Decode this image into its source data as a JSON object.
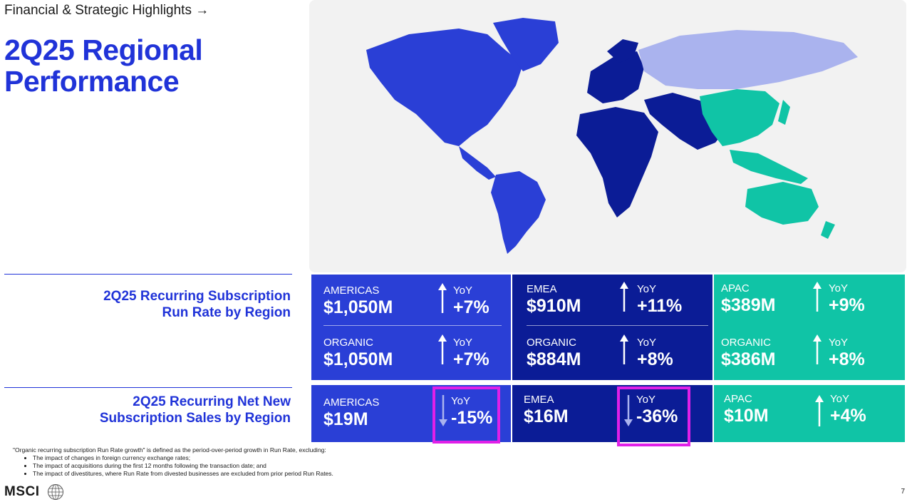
{
  "header": {
    "breadcrumb": "Financial & Strategic Highlights →",
    "title_line1": "2Q25 Regional",
    "title_line2": "Performance"
  },
  "colors": {
    "americas": "#2a3fd6",
    "emea": "#0b1c96",
    "apac": "#10c4a6",
    "russia": "#aab3ee",
    "highlight": "#e020e8"
  },
  "run_rate": {
    "label_line1": "2Q25 Recurring Subscription",
    "label_line2": "Run Rate by Region",
    "americas": {
      "label": "AMERICAS",
      "value": "$1,050M",
      "yoy": "YoY",
      "change": "+7%",
      "direction": "up",
      "organic_label": "ORGANIC",
      "organic_value": "$1,050M",
      "organic_yoy": "YoY",
      "organic_change": "+7%",
      "organic_direction": "up"
    },
    "emea": {
      "label": "EMEA",
      "value": "$910M",
      "yoy": "YoY",
      "change": "+11%",
      "direction": "up",
      "organic_label": "ORGANIC",
      "organic_value": "$884M",
      "organic_yoy": "YoY",
      "organic_change": "+8%",
      "organic_direction": "up"
    },
    "apac": {
      "label": "APAC",
      "value": "$389M",
      "yoy": "YoY",
      "change": "+9%",
      "direction": "up",
      "organic_label": "ORGANIC",
      "organic_value": "$386M",
      "organic_yoy": "YoY",
      "organic_change": "+8%",
      "organic_direction": "up"
    }
  },
  "net_new": {
    "label_line1": "2Q25 Recurring Net New",
    "label_line2": "Subscription Sales by Region",
    "americas": {
      "label": "AMERICAS",
      "value": "$19M",
      "yoy": "YoY",
      "change": "-15%",
      "direction": "down",
      "highlighted": true
    },
    "emea": {
      "label": "EMEA",
      "value": "$16M",
      "yoy": "YoY",
      "change": "-36%",
      "direction": "down",
      "highlighted": true
    },
    "apac": {
      "label": "APAC",
      "value": "$10M",
      "yoy": "YoY",
      "change": "+4%",
      "direction": "up",
      "highlighted": false
    }
  },
  "footnote": {
    "intro": "\"Organic recurring subscription Run Rate growth\" is defined as the period-over-period growth in Run Rate, excluding:",
    "items": [
      "The impact of changes in foreign currency exchange rates;",
      "The impact of acquisitions during the first 12 months following the transaction date; and",
      "The impact of divestitures, where Run Rate from divested businesses are excluded from prior period Run Rates."
    ]
  },
  "footer": {
    "logo": "MSCI",
    "page_number": "7"
  }
}
